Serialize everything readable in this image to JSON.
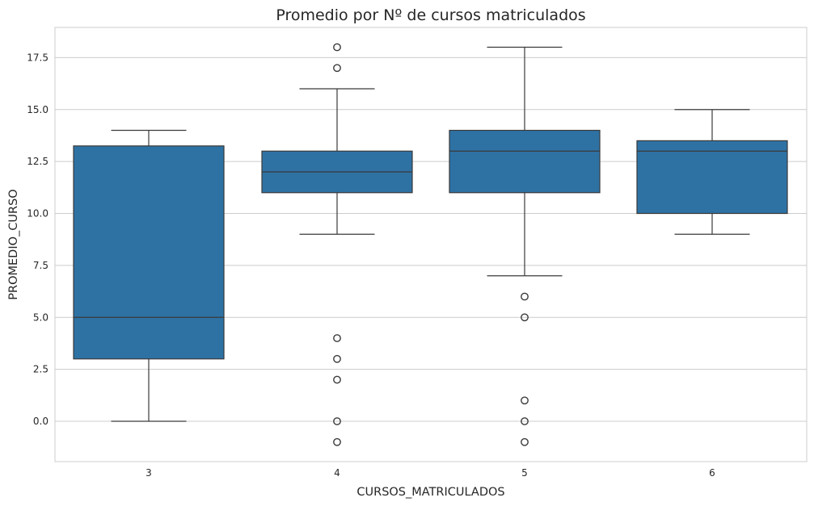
{
  "chart_data": {
    "type": "box",
    "title": "Promedio por Nº de cursos matriculados",
    "xlabel": "CURSOS_MATRICULADOS",
    "ylabel": "PROMEDIO_CURSO",
    "ylim": [
      -2,
      19
    ],
    "yticks": [
      "0.0",
      "2.5",
      "5.0",
      "7.5",
      "10.0",
      "12.5",
      "15.0",
      "17.5"
    ],
    "ytick_values": [
      0,
      2.5,
      5,
      7.5,
      10,
      12.5,
      15,
      17.5
    ],
    "grid": "horizontal",
    "categories": [
      "3",
      "4",
      "5",
      "6"
    ],
    "boxes": [
      {
        "category": "3",
        "whisker_low": 0,
        "q1": 3,
        "median": 5,
        "q3": 13.25,
        "whisker_high": 14,
        "outliers": []
      },
      {
        "category": "4",
        "whisker_low": 9,
        "q1": 11,
        "median": 12,
        "q3": 13,
        "whisker_high": 16,
        "outliers": [
          18,
          17,
          4,
          3,
          2,
          0,
          -1
        ]
      },
      {
        "category": "5",
        "whisker_low": 7,
        "q1": 11,
        "median": 13,
        "q3": 14,
        "whisker_high": 18,
        "outliers": [
          6,
          5,
          1,
          0,
          -1
        ]
      },
      {
        "category": "6",
        "whisker_low": 9,
        "q1": 10,
        "median": 13,
        "q3": 13.5,
        "whisker_high": 15,
        "outliers": []
      }
    ],
    "colors": {
      "box": "#2e72a4",
      "line": "#3a3a3a",
      "grid": "#cccccc"
    }
  }
}
